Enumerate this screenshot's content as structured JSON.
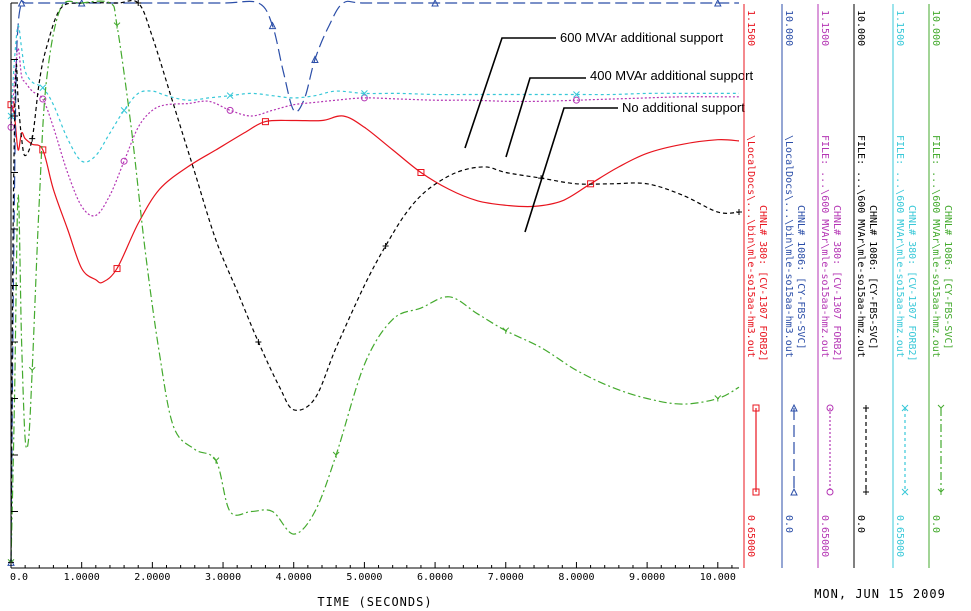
{
  "chart_data": {
    "type": "line",
    "xlabel": "TIME  (SECONDS)",
    "xlim": [
      0,
      10.3
    ],
    "x_ticks": [
      0,
      1,
      2,
      3,
      4,
      5,
      6,
      7,
      8,
      9,
      10
    ],
    "x_tick_labels": [
      "0.0",
      "1.0000",
      "2.0000",
      "3.0000",
      "4.0000",
      "5.0000",
      "6.0000",
      "7.0000",
      "8.0000",
      "9.0000",
      "10.000"
    ],
    "date": "MON, JUN 15 2009",
    "grid": false,
    "annotations": [
      {
        "text": "600 MVAr additional support",
        "x": 6.2,
        "y": 1.118
      },
      {
        "text": "400 MVAr additional support",
        "x": 6.8,
        "y": 1.107
      },
      {
        "text": "No additional support",
        "x": 7.4,
        "y": 1.042
      }
    ],
    "series": [
      {
        "channel": "CHNL# 380: [CV-1307 FORB2]",
        "file": "\\LocalDocs\\...\\bin\\mle-so15aa-hm3.out",
        "max": "1.1500",
        "min": "0.65000",
        "ymin": 0.65,
        "ymax": 1.15,
        "color": "#e8141e",
        "marker": "square",
        "dash": "",
        "x": [
          0,
          0.05,
          0.1,
          0.15,
          0.2,
          0.3,
          0.45,
          0.6,
          0.8,
          1.0,
          1.2,
          1.3,
          1.5,
          1.8,
          2.1,
          2.5,
          2.9,
          3.3,
          3.6,
          4.0,
          4.4,
          4.7,
          5.0,
          5.4,
          5.8,
          6.2,
          6.6,
          7.0,
          7.4,
          7.8,
          8.2,
          8.6,
          9.0,
          9.5,
          10.0,
          10.3
        ],
        "y": [
          1.06,
          1.05,
          1.02,
          1.035,
          1.03,
          1.025,
          1.02,
          0.985,
          0.95,
          0.915,
          0.905,
          0.903,
          0.915,
          0.955,
          0.985,
          1.005,
          1.02,
          1.035,
          1.045,
          1.046,
          1.046,
          1.05,
          1.04,
          1.02,
          1.0,
          0.985,
          0.975,
          0.971,
          0.97,
          0.975,
          0.99,
          1.005,
          1.017,
          1.025,
          1.029,
          1.028
        ]
      },
      {
        "channel": "CHNL# 1086: [CY-FBS-SVC]",
        "file": "\\LocalDocs\\...\\bin\\mle-so15aa-hm3.out",
        "max": "10.000",
        "min": "0.0",
        "ymin": 0,
        "ymax": 10,
        "color": "#2b4ea8",
        "marker": "triangle",
        "dash": "12 5",
        "x": [
          0,
          0.03,
          0.07,
          0.1,
          0.15,
          0.2,
          0.3,
          0.5,
          1.0,
          2.0,
          3.0,
          3.5,
          3.7,
          3.85,
          4.0,
          4.15,
          4.3,
          4.5,
          4.7,
          5.0,
          6.0,
          7.0,
          8.0,
          9.0,
          10.0,
          10.3
        ],
        "y": [
          0.1,
          4.5,
          8.5,
          9.6,
          10.0,
          10.0,
          10.0,
          10.0,
          10.0,
          10.0,
          10.0,
          10.0,
          9.6,
          8.8,
          8.1,
          8.3,
          9.0,
          9.6,
          10.0,
          10.0,
          10.0,
          10.0,
          10.0,
          10.0,
          10.0,
          10.0
        ]
      },
      {
        "channel": "CHNL# 380: [CV-1307 FORB2]",
        "file": "...\\600 MVAr\\mle-so15aa-hmz.out",
        "max": "1.1500",
        "min": "0.65000",
        "ymin": 0.65,
        "ymax": 1.15,
        "color": "#b435b4",
        "marker": "circle",
        "dash": "2 2",
        "x": [
          0,
          0.05,
          0.1,
          0.15,
          0.2,
          0.3,
          0.45,
          0.6,
          0.8,
          1.0,
          1.2,
          1.4,
          1.6,
          1.8,
          2.0,
          2.2,
          2.5,
          2.8,
          3.1,
          3.4,
          3.7,
          4.0,
          4.3,
          4.6,
          5.0,
          5.5,
          6.0,
          6.5,
          7.0,
          7.5,
          8.0,
          8.5,
          9.0,
          9.5,
          10.0,
          10.3
        ],
        "y": [
          1.04,
          1.08,
          1.11,
          1.085,
          1.08,
          1.072,
          1.065,
          1.04,
          1.0,
          0.97,
          0.962,
          0.98,
          1.01,
          1.04,
          1.055,
          1.06,
          1.061,
          1.063,
          1.055,
          1.05,
          1.055,
          1.06,
          1.062,
          1.064,
          1.066,
          1.065,
          1.064,
          1.064,
          1.063,
          1.063,
          1.064,
          1.065,
          1.066,
          1.067,
          1.067,
          1.067
        ]
      },
      {
        "channel": "CHNL# 1086: [CY-FBS-SVC]",
        "file": "...\\600 MVAr\\mle-so15aa-hmz.out",
        "max": "10.000",
        "min": "0.0",
        "ymin": 0,
        "ymax": 10,
        "color": "#000000",
        "marker": "plus",
        "dash": "4 3",
        "x": [
          0,
          0.03,
          0.07,
          0.1,
          0.15,
          0.2,
          0.3,
          0.4,
          0.5,
          0.7,
          1.0,
          1.5,
          1.8,
          2.0,
          2.3,
          2.6,
          2.9,
          3.2,
          3.5,
          3.8,
          4.0,
          4.3,
          4.6,
          5.0,
          5.3,
          5.6,
          5.9,
          6.3,
          6.7,
          7.0,
          7.5,
          8.0,
          8.5,
          9.0,
          9.5,
          10.0,
          10.3
        ],
        "y": [
          0.1,
          6.0,
          8.8,
          8.3,
          7.6,
          7.3,
          7.6,
          8.6,
          9.2,
          9.9,
          10.0,
          10.0,
          10.0,
          9.4,
          8.2,
          7.0,
          5.8,
          4.9,
          4.0,
          3.2,
          2.8,
          3.0,
          3.9,
          5.0,
          5.7,
          6.3,
          6.7,
          7.0,
          7.1,
          7.0,
          6.9,
          6.8,
          6.8,
          6.8,
          6.6,
          6.3,
          6.3
        ]
      },
      {
        "channel": "CHNL# 380: [CV-1307 FORB2]",
        "file": "...\\600 MVAr\\mle-so15aa-hmz.out",
        "max": "1.1500",
        "min": "0.65000",
        "ymin": 0.65,
        "ymax": 1.15,
        "color": "#38c8d8",
        "marker": "x",
        "dash": "3 3",
        "x": [
          0,
          0.05,
          0.1,
          0.15,
          0.2,
          0.3,
          0.45,
          0.6,
          0.8,
          1.0,
          1.2,
          1.4,
          1.6,
          1.8,
          2.0,
          2.2,
          2.5,
          2.8,
          3.1,
          3.4,
          3.7,
          4.0,
          4.3,
          4.6,
          5.0,
          5.5,
          6.0,
          6.5,
          7.0,
          7.5,
          8.0,
          8.5,
          9.0,
          9.5,
          10.0,
          10.3
        ],
        "y": [
          1.05,
          1.1,
          1.13,
          1.11,
          1.09,
          1.08,
          1.075,
          1.06,
          1.03,
          1.01,
          1.015,
          1.035,
          1.055,
          1.07,
          1.072,
          1.068,
          1.064,
          1.066,
          1.068,
          1.07,
          1.068,
          1.066,
          1.068,
          1.072,
          1.07,
          1.07,
          1.069,
          1.069,
          1.069,
          1.069,
          1.069,
          1.069,
          1.07,
          1.07,
          1.07,
          1.07
        ]
      },
      {
        "channel": "CHNL# 1086: [CY-FBS-SVC]",
        "file": "...\\600 MVAr\\mle-so15aa-hmz.out",
        "max": "10.000",
        "min": "0.0",
        "ymin": 0,
        "ymax": 10,
        "color": "#44aa2e",
        "marker": "y",
        "dash": "8 3 2 3",
        "x": [
          0,
          0.05,
          0.1,
          0.15,
          0.2,
          0.25,
          0.3,
          0.4,
          0.5,
          0.7,
          1.0,
          1.4,
          1.5,
          1.7,
          1.9,
          2.1,
          2.3,
          2.6,
          2.9,
          3.1,
          3.4,
          3.7,
          4.0,
          4.3,
          4.6,
          5.0,
          5.4,
          5.8,
          6.2,
          6.6,
          7.0,
          7.5,
          8.0,
          8.5,
          9.0,
          9.5,
          10.0,
          10.3
        ],
        "y": [
          0.1,
          3.0,
          6.6,
          4.0,
          2.3,
          2.3,
          3.5,
          6.5,
          8.6,
          9.9,
          10.0,
          10.0,
          9.6,
          7.8,
          5.6,
          3.8,
          2.5,
          2.1,
          1.9,
          1.0,
          1.0,
          1.0,
          0.6,
          1.0,
          2.0,
          3.6,
          4.4,
          4.6,
          4.8,
          4.5,
          4.2,
          3.9,
          3.5,
          3.2,
          3.0,
          2.9,
          3.0,
          3.2
        ]
      }
    ]
  }
}
